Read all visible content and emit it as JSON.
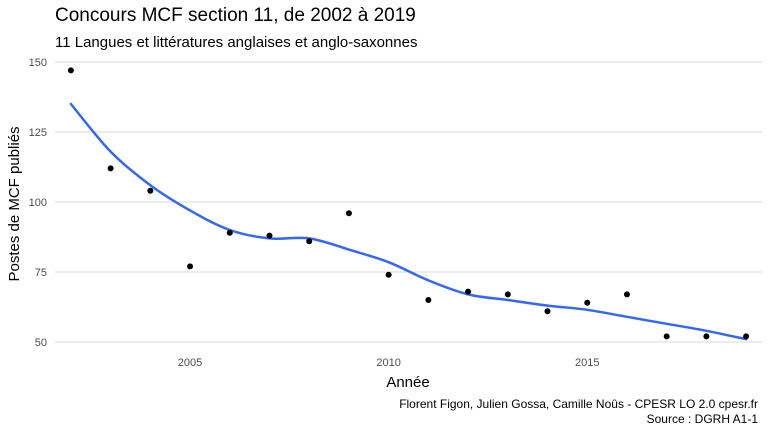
{
  "chart_data": {
    "type": "scatter",
    "title": "Concours MCF section 11, de 2002 à 2019",
    "subtitle": "11 Langues et littératures anglaises et anglo-saxonnes",
    "xlabel": "Année",
    "ylabel": "Postes de MCF publiés",
    "caption_line1": "Florent Figon, Julien Gossa, Camille Noûs - CPESR LO 2.0 cpesr.fr",
    "caption_line2": "Source : DGRH A1-1",
    "xlim": [
      2001.6,
      2019.4
    ],
    "ylim": [
      47.5,
      152.5
    ],
    "x_ticks": [
      2005,
      2010,
      2015
    ],
    "y_ticks": [
      50,
      75,
      100,
      125,
      150
    ],
    "grid": "horizontal",
    "point_color": "#000000",
    "smooth_color": "#3366ff",
    "points": [
      {
        "x": 2002,
        "y": 147
      },
      {
        "x": 2003,
        "y": 112
      },
      {
        "x": 2004,
        "y": 104
      },
      {
        "x": 2005,
        "y": 77
      },
      {
        "x": 2006,
        "y": 89
      },
      {
        "x": 2007,
        "y": 88
      },
      {
        "x": 2008,
        "y": 86
      },
      {
        "x": 2009,
        "y": 96
      },
      {
        "x": 2010,
        "y": 74
      },
      {
        "x": 2011,
        "y": 65
      },
      {
        "x": 2012,
        "y": 68
      },
      {
        "x": 2013,
        "y": 67
      },
      {
        "x": 2014,
        "y": 61
      },
      {
        "x": 2015,
        "y": 64
      },
      {
        "x": 2016,
        "y": 67
      },
      {
        "x": 2017,
        "y": 52
      },
      {
        "x": 2018,
        "y": 52
      },
      {
        "x": 2019,
        "y": 52
      }
    ],
    "smooth": [
      {
        "x": 2002,
        "y": 135
      },
      {
        "x": 2003,
        "y": 118
      },
      {
        "x": 2004,
        "y": 106
      },
      {
        "x": 2005,
        "y": 97
      },
      {
        "x": 2006,
        "y": 90
      },
      {
        "x": 2007,
        "y": 87
      },
      {
        "x": 2008,
        "y": 87
      },
      {
        "x": 2009,
        "y": 83
      },
      {
        "x": 2010,
        "y": 78.5
      },
      {
        "x": 2011,
        "y": 72
      },
      {
        "x": 2012,
        "y": 67
      },
      {
        "x": 2013,
        "y": 65
      },
      {
        "x": 2014,
        "y": 63
      },
      {
        "x": 2015,
        "y": 61.5
      },
      {
        "x": 2016,
        "y": 59
      },
      {
        "x": 2017,
        "y": 56.5
      },
      {
        "x": 2018,
        "y": 54
      },
      {
        "x": 2019,
        "y": 51
      }
    ]
  }
}
